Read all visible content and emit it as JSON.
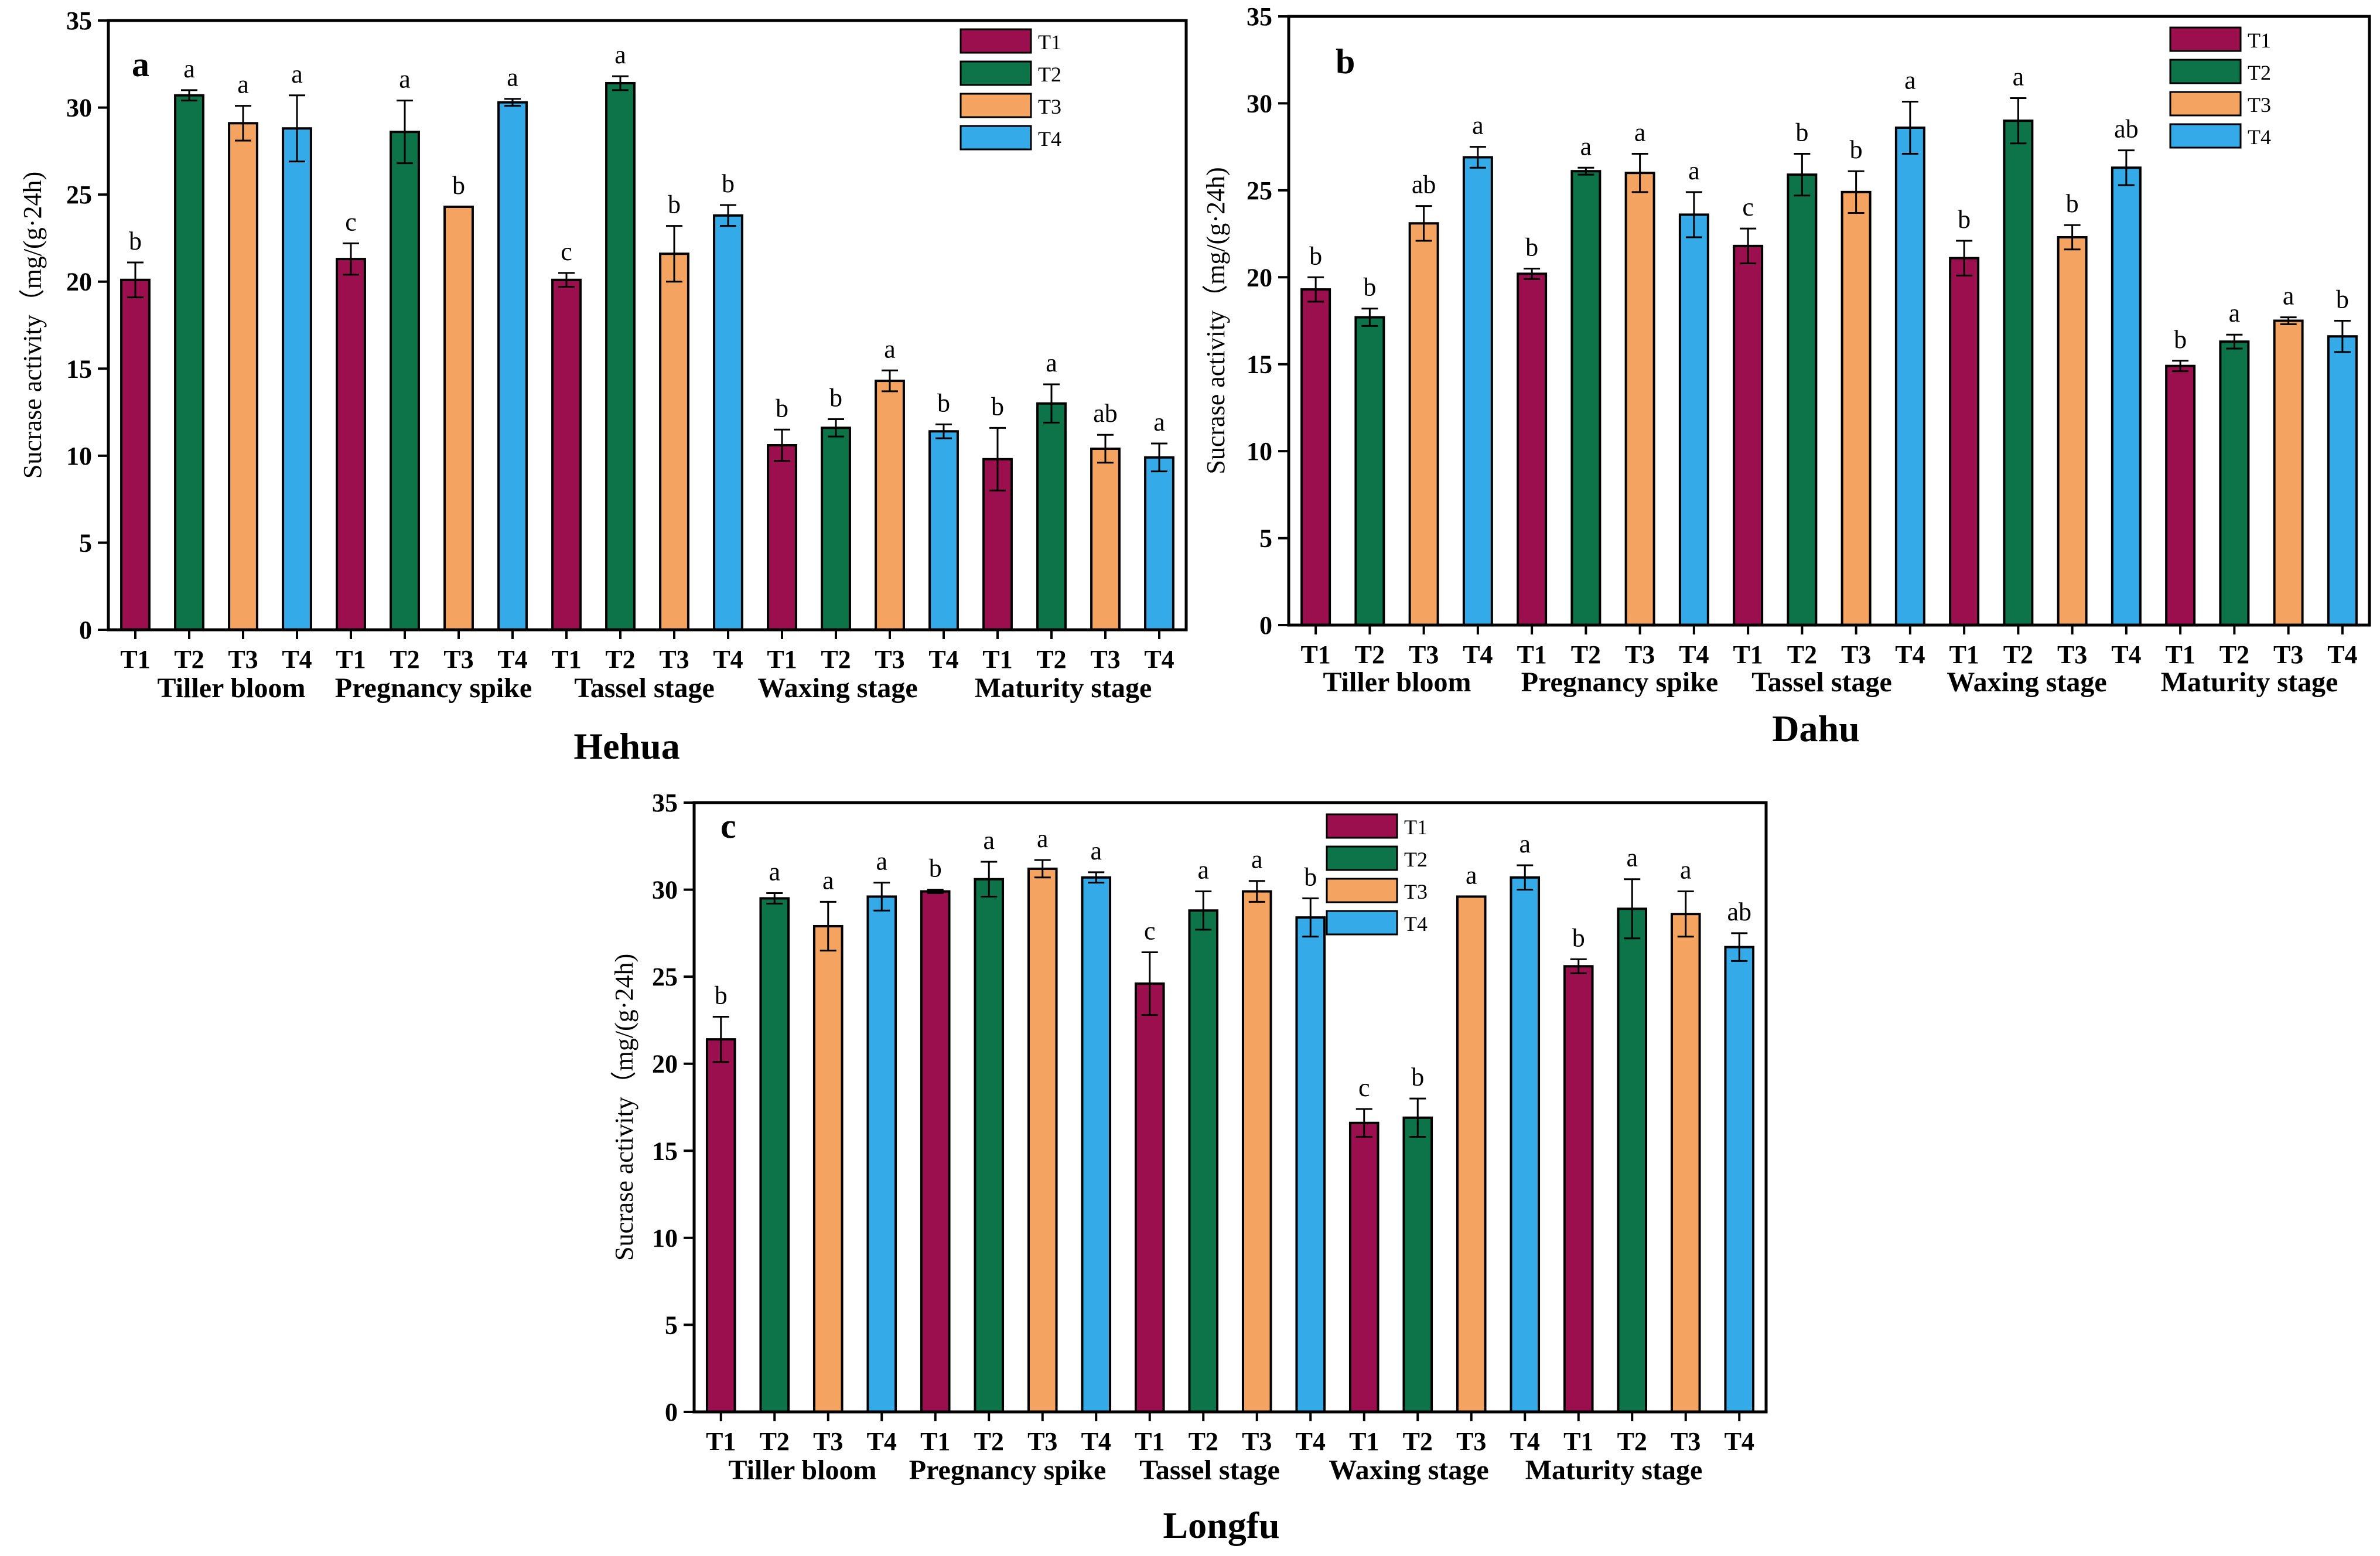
{
  "colors": {
    "T1": "#9b0f4f",
    "T2": "#0d7348",
    "T3": "#f4a460",
    "T4": "#34abe8"
  },
  "legend": [
    "T1",
    "T2",
    "T3",
    "T4"
  ],
  "chart_data": [
    {
      "type": "bar",
      "panel": "a",
      "title": "Hehua",
      "ylabel": "Sucrase activity（mg/(g·24h)",
      "ylim": [
        0,
        35
      ],
      "yticks": [
        "0",
        "5",
        "10",
        "15",
        "20",
        "25",
        "30",
        "35"
      ],
      "stages": [
        "Tiller bloom",
        "Pregnancy spike",
        "Tassel stage",
        "Waxing stage",
        "Maturity stage"
      ],
      "treatments": [
        "T1",
        "T2",
        "T3",
        "T4"
      ],
      "values": [
        20.1,
        30.7,
        29.1,
        28.8,
        21.3,
        28.6,
        24.3,
        30.3,
        20.1,
        31.4,
        21.6,
        23.8,
        10.6,
        11.6,
        14.3,
        11.4,
        9.8,
        13.0,
        10.4,
        9.9
      ],
      "errors": [
        1.0,
        0.3,
        1.0,
        1.9,
        0.9,
        1.8,
        0.0,
        0.2,
        0.4,
        0.4,
        1.6,
        0.6,
        0.9,
        0.5,
        0.6,
        0.4,
        1.8,
        1.1,
        0.8,
        0.8
      ],
      "significance": [
        "b",
        "a",
        "a",
        "a",
        "c",
        "a",
        "b",
        "a",
        "c",
        "a",
        "b",
        "b",
        "b",
        "b",
        "a",
        "b",
        "b",
        "a",
        "ab",
        "a"
      ]
    },
    {
      "type": "bar",
      "panel": "b",
      "title": "Dahu",
      "ylabel": "Sucrase activity（mg/(g·24h)",
      "ylim": [
        0,
        35
      ],
      "yticks": [
        "0",
        "5",
        "10",
        "15",
        "20",
        "25",
        "30",
        "35"
      ],
      "stages": [
        "Tiller bloom",
        "Pregnancy spike",
        "Tassel stage",
        "Waxing stage",
        "Maturity stage"
      ],
      "treatments": [
        "T1",
        "T2",
        "T3",
        "T4"
      ],
      "values": [
        19.3,
        17.7,
        23.1,
        26.9,
        20.2,
        26.1,
        26.0,
        23.6,
        21.8,
        25.9,
        24.9,
        28.6,
        21.1,
        29.0,
        22.3,
        26.3,
        14.9,
        16.3,
        17.5,
        16.6
      ],
      "errors": [
        0.7,
        0.5,
        1.0,
        0.6,
        0.3,
        0.2,
        1.1,
        1.3,
        1.0,
        1.2,
        1.2,
        1.5,
        1.0,
        1.3,
        0.7,
        1.0,
        0.3,
        0.4,
        0.2,
        0.9
      ],
      "significance": [
        "b",
        "b",
        "ab",
        "a",
        "b",
        "a",
        "a",
        "a",
        "c",
        "b",
        "b",
        "a",
        "b",
        "a",
        "b",
        "ab",
        "b",
        "a",
        "a",
        "b"
      ]
    },
    {
      "type": "bar",
      "panel": "c",
      "title": "Longfu",
      "ylabel": "Sucrase activity（mg/(g·24h)",
      "ylim": [
        0,
        35
      ],
      "yticks": [
        "0",
        "5",
        "10",
        "15",
        "20",
        "25",
        "30",
        "35"
      ],
      "stages": [
        "Tiller bloom",
        "Pregnancy spike",
        "Tassel stage",
        "Waxing stage",
        "Maturity stage"
      ],
      "treatments": [
        "T1",
        "T2",
        "T3",
        "T4"
      ],
      "values": [
        21.4,
        29.5,
        27.9,
        29.6,
        29.9,
        30.6,
        31.2,
        30.7,
        24.6,
        28.8,
        29.9,
        28.4,
        16.6,
        16.9,
        29.6,
        30.7,
        25.6,
        28.9,
        28.6,
        26.7
      ],
      "errors": [
        1.3,
        0.3,
        1.4,
        0.8,
        0.1,
        1.0,
        0.5,
        0.3,
        1.8,
        1.1,
        0.6,
        1.1,
        0.8,
        1.1,
        0.0,
        0.7,
        0.4,
        1.7,
        1.3,
        0.8
      ],
      "significance": [
        "b",
        "a",
        "a",
        "a",
        "b",
        "a",
        "a",
        "a",
        "c",
        "a",
        "a",
        "b",
        "c",
        "b",
        "a",
        "a",
        "b",
        "a",
        "a",
        "ab"
      ]
    }
  ]
}
